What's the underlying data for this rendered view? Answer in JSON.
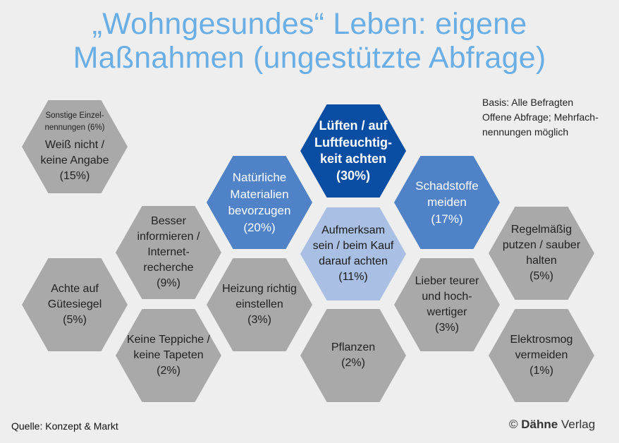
{
  "title": {
    "line1": "„Wohngesundes“ Leben: eigene",
    "line2": "Maßnahmen (ungestützte Abfrage)"
  },
  "basis": {
    "line1": "Basis: Alle Befragten",
    "line2": "Offene Abfrage; Mehrfach-",
    "line3": "nennungen möglich"
  },
  "hexagons": {
    "weiss_nicht": {
      "note_line1": "Sonstige Einzel-",
      "note_line2": "nennungen (6%)",
      "line1": "Weiß nicht /",
      "line2": "keine Angabe",
      "value": "(15%)"
    },
    "lueften": {
      "line1": "Lüften / auf",
      "line2": "Luftfeuchtig-",
      "line3": "keit achten",
      "value": "(30%)"
    },
    "materialien": {
      "line1": "Natürliche",
      "line2": "Materialien",
      "line3": "bevorzugen",
      "value": "(20%)"
    },
    "schadstoffe": {
      "line1": "Schadstoffe",
      "line2": "meiden",
      "value": "(17%)"
    },
    "aufmerksam": {
      "line1": "Aufmerksam",
      "line2": "sein / beim Kauf",
      "line3": "darauf achten",
      "value": "(11%)"
    },
    "informieren": {
      "line1": "Besser",
      "line2": "informieren /",
      "line3": "Internet-",
      "line4": "recherche",
      "value": "(9%)"
    },
    "guetesiegel": {
      "line1": "Achte auf",
      "line2": "Gütesiegel",
      "value": "(5%)"
    },
    "putzen": {
      "line1": "Regelmäßig",
      "line2": "putzen / sauber",
      "line3": "halten",
      "value": "(5%)"
    },
    "heizung": {
      "line1": "Heizung richtig",
      "line2": "einstellen",
      "value": "(3%)"
    },
    "teurer": {
      "line1": "Lieber teurer",
      "line2": "und hoch-",
      "line3": "wertiger",
      "value": "(3%)"
    },
    "teppiche": {
      "line1": "Keine Teppiche /",
      "line2": "keine Tapeten",
      "value": "(2%)"
    },
    "pflanzen": {
      "line1": "Pflanzen",
      "value": "(2%)"
    },
    "elektrosmog": {
      "line1": "Elektrosmog",
      "line2": "vermeiden",
      "value": "(1%)"
    }
  },
  "footer": {
    "source": "Quelle: Konzept & Markt",
    "copyright_symbol": "©",
    "brand": "Dähne",
    "brand_suffix": "Verlag"
  },
  "colors": {
    "title": "#6aaee6",
    "dark_blue": "#0a4ea4",
    "mid_blue": "#4f82c7",
    "light_blue": "#a9bfe3",
    "gray": "#a9a9a9",
    "background": "#eeeeee"
  }
}
